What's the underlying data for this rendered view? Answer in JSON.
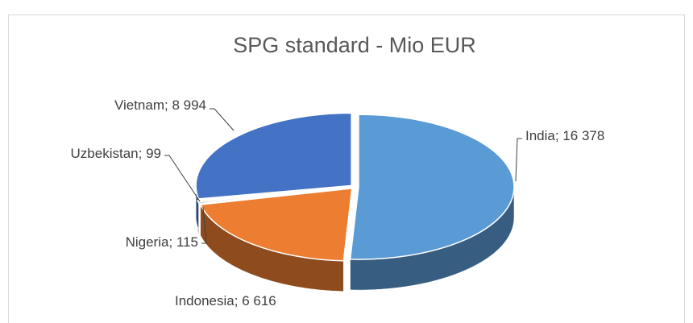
{
  "chart_data": {
    "type": "pie",
    "title": "SPG standard - Mio EUR",
    "categories": [
      "India",
      "Indonesia",
      "Nigeria",
      "Uzbekistan",
      "Vietnam"
    ],
    "values": [
      16378,
      6616,
      115,
      99,
      8994
    ],
    "value_labels": [
      "16 378",
      "6 616",
      "115",
      "99",
      "8 994"
    ],
    "label_separator": "; ",
    "colors": [
      "#5b9bd5",
      "#ed7d31",
      "#a5a5a5",
      "#ffc000",
      "#4472c4"
    ],
    "three_d": true
  }
}
